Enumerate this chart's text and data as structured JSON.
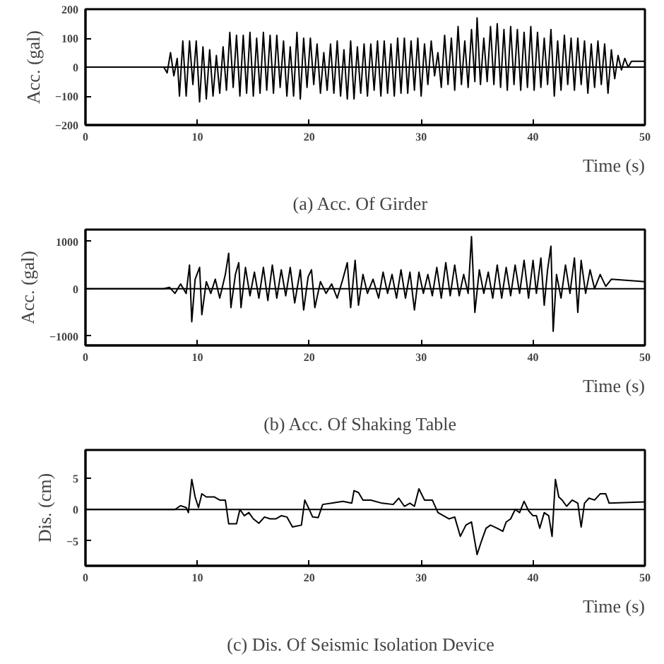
{
  "chart_data": [
    {
      "type": "line",
      "title": "(a)   Acc. Of Girder",
      "xlabel": "Time (s)",
      "ylabel": "Acc. (gal)",
      "xlim": [
        0,
        50
      ],
      "xticks": [
        0,
        10,
        20,
        30,
        40,
        50
      ],
      "ylim": [
        -200,
        200
      ],
      "yticks": [
        -200,
        -100,
        0,
        100,
        200
      ],
      "grid": false,
      "ref_lines": [
        {
          "axis": "y",
          "value": 0,
          "color": "#000000"
        }
      ],
      "series": [
        {
          "color": "#000000",
          "x": [
            0,
            7,
            7.3,
            7.6,
            7.9,
            8.2,
            8.4,
            8.7,
            9.0,
            9.3,
            9.6,
            9.9,
            10.2,
            10.5,
            10.8,
            11.1,
            11.4,
            11.7,
            12.0,
            12.3,
            12.6,
            12.9,
            13.2,
            13.5,
            13.8,
            14.1,
            14.4,
            14.7,
            15.0,
            15.3,
            15.6,
            15.9,
            16.2,
            16.5,
            16.8,
            17.1,
            17.4,
            17.7,
            18.0,
            18.3,
            18.6,
            18.9,
            19.2,
            19.5,
            19.8,
            20.1,
            20.4,
            20.7,
            21.0,
            21.3,
            21.6,
            21.9,
            22.2,
            22.5,
            22.8,
            23.1,
            23.4,
            23.7,
            24.0,
            24.3,
            24.6,
            24.9,
            25.2,
            25.5,
            25.8,
            26.1,
            26.4,
            26.7,
            27.0,
            27.3,
            27.6,
            27.9,
            28.2,
            28.5,
            28.8,
            29.1,
            29.4,
            29.7,
            30.0,
            30.3,
            30.6,
            30.9,
            31.2,
            31.5,
            31.8,
            32.1,
            32.4,
            32.7,
            33.0,
            33.3,
            33.6,
            33.9,
            34.2,
            34.5,
            34.8,
            35.0,
            35.3,
            35.6,
            35.9,
            36.2,
            36.5,
            36.8,
            37.1,
            37.4,
            37.7,
            38.0,
            38.3,
            38.6,
            38.9,
            39.2,
            39.5,
            39.8,
            40.1,
            40.4,
            40.7,
            41.0,
            41.3,
            41.6,
            41.9,
            42.2,
            42.5,
            42.8,
            43.1,
            43.4,
            43.7,
            44.0,
            44.3,
            44.6,
            44.9,
            45.2,
            45.5,
            45.8,
            46.1,
            46.4,
            46.7,
            47.0,
            47.3,
            47.6,
            47.9,
            48.2,
            48.5,
            48.8,
            50
          ],
          "values": [
            0,
            0,
            -20,
            50,
            -30,
            30,
            -100,
            90,
            -100,
            90,
            -60,
            90,
            -120,
            70,
            -110,
            60,
            -100,
            40,
            -90,
            70,
            -80,
            120,
            -70,
            110,
            -100,
            110,
            -90,
            120,
            -100,
            100,
            -90,
            120,
            -80,
            110,
            -90,
            110,
            -70,
            90,
            -100,
            70,
            -100,
            120,
            -110,
            100,
            -70,
            100,
            -60,
            80,
            -90,
            50,
            -80,
            80,
            -90,
            90,
            -100,
            60,
            -110,
            90,
            -110,
            70,
            -90,
            80,
            -100,
            80,
            -80,
            90,
            -100,
            90,
            -90,
            80,
            -100,
            100,
            -90,
            100,
            -90,
            90,
            -80,
            100,
            -100,
            80,
            -60,
            90,
            -30,
            50,
            -70,
            110,
            -60,
            100,
            -80,
            140,
            -60,
            90,
            -70,
            130,
            -50,
            170,
            -60,
            100,
            -50,
            140,
            -60,
            150,
            -70,
            130,
            -80,
            140,
            -60,
            130,
            -80,
            120,
            -70,
            140,
            -80,
            120,
            -70,
            100,
            -60,
            130,
            -100,
            90,
            -80,
            110,
            -60,
            100,
            -80,
            100,
            -60,
            90,
            -90,
            80,
            -70,
            90,
            -60,
            80,
            -90,
            60,
            -40,
            40,
            -10,
            30,
            0,
            20,
            20
          ]
        }
      ]
    },
    {
      "type": "line",
      "title": "(b)   Acc. Of Shaking Table",
      "xlabel": "Time (s)",
      "ylabel": "Acc. (gal)",
      "xlim": [
        0,
        50
      ],
      "xticks": [
        0,
        10,
        20,
        30,
        40,
        50
      ],
      "ylim": [
        -1200,
        1250
      ],
      "yticks": [
        -1000,
        0,
        1000
      ],
      "grid": false,
      "ref_lines": [
        {
          "axis": "y",
          "value": 0,
          "color": "#000000"
        }
      ],
      "series": [
        {
          "color": "#000000",
          "x": [
            0,
            7,
            7.5,
            8,
            8.5,
            9.0,
            9.3,
            9.5,
            9.8,
            10.2,
            10.4,
            10.8,
            11.2,
            11.6,
            12,
            12.5,
            12.8,
            13,
            13.4,
            13.7,
            13.9,
            14.3,
            14.7,
            15.1,
            15.5,
            15.9,
            16.3,
            16.7,
            17.1,
            17.5,
            17.9,
            18.3,
            18.7,
            19.2,
            19.5,
            19.9,
            20.2,
            20.5,
            21,
            21.5,
            22,
            22.5,
            23,
            23.4,
            23.7,
            24.1,
            24.4,
            24.8,
            25.2,
            25.7,
            26.2,
            26.6,
            27,
            27.4,
            27.8,
            28.2,
            28.6,
            29,
            29.4,
            29.8,
            30.2,
            30.6,
            31,
            31.4,
            31.8,
            32.2,
            32.6,
            33,
            33.4,
            33.8,
            34.2,
            34.5,
            34.8,
            35.2,
            35.6,
            36,
            36.4,
            36.8,
            37.2,
            37.6,
            38,
            38.4,
            38.8,
            39.2,
            39.6,
            40,
            40.3,
            40.7,
            41,
            41.3,
            41.6,
            41.8,
            42.1,
            42.5,
            42.9,
            43.3,
            43.7,
            44.0,
            44.3,
            44.7,
            45.1,
            45.5,
            46,
            46.5,
            47,
            50
          ],
          "values": [
            0,
            0,
            30,
            -100,
            100,
            -100,
            500,
            -700,
            200,
            450,
            -550,
            150,
            -100,
            200,
            -200,
            300,
            750,
            -400,
            300,
            550,
            -400,
            450,
            -150,
            350,
            -200,
            450,
            -250,
            500,
            -200,
            400,
            -150,
            450,
            -300,
            400,
            -450,
            250,
            400,
            -400,
            150,
            -100,
            100,
            -200,
            200,
            550,
            -400,
            600,
            -350,
            300,
            -100,
            200,
            -200,
            350,
            -100,
            300,
            -200,
            400,
            -200,
            350,
            -450,
            350,
            -100,
            300,
            -150,
            450,
            -200,
            550,
            -150,
            500,
            -150,
            300,
            -100,
            1100,
            -500,
            400,
            -100,
            350,
            -200,
            500,
            -200,
            450,
            -150,
            500,
            -100,
            600,
            -200,
            600,
            -100,
            650,
            -350,
            400,
            900,
            -900,
            300,
            -200,
            500,
            -100,
            650,
            -500,
            600,
            -100,
            400,
            0,
            300,
            50,
            200,
            150
          ]
        }
      ]
    },
    {
      "type": "line",
      "title": "(c)   Dis. Of Seismic Isolation Device",
      "xlabel": "Time (s)",
      "ylabel": "Dis. (cm)",
      "xlim": [
        0,
        50
      ],
      "xticks": [
        0,
        10,
        20,
        30,
        40,
        50
      ],
      "ylim": [
        -9,
        9.5
      ],
      "yticks": [
        -5,
        0,
        5
      ],
      "grid": false,
      "ref_lines": [
        {
          "axis": "y",
          "value": 0,
          "color": "#000000"
        }
      ],
      "series": [
        {
          "color": "#000000",
          "x": [
            0,
            8,
            8.5,
            9,
            9.2,
            9.5,
            9.8,
            10.1,
            10.4,
            10.8,
            11.5,
            12,
            12.5,
            12.8,
            13.5,
            13.8,
            14.2,
            14.6,
            15,
            15.5,
            16,
            16.5,
            17,
            17.5,
            18,
            18.5,
            19.3,
            19.6,
            20,
            20.3,
            20.8,
            21.2,
            22,
            23,
            23.8,
            24,
            24.4,
            24.8,
            25.5,
            26.5,
            27.5,
            28,
            28.5,
            29,
            29.4,
            29.8,
            30.3,
            31,
            31.5,
            32,
            32.5,
            33,
            33.5,
            34,
            34.5,
            35,
            35.4,
            35.8,
            36.2,
            36.8,
            37.3,
            37.6,
            38,
            38.4,
            38.8,
            39.2,
            39.6,
            40,
            40.3,
            40.6,
            41,
            41.4,
            41.7,
            42,
            42.3,
            42.6,
            43,
            43.5,
            44,
            44.3,
            44.6,
            45,
            45.5,
            46,
            46.5,
            46.8,
            50
          ],
          "values": [
            0,
            0,
            0.6,
            0.3,
            -0.5,
            4.8,
            2,
            0.3,
            2.5,
            2,
            2,
            1.5,
            1.5,
            -2.3,
            -2.3,
            0,
            -1,
            -0.5,
            -1.5,
            -2.2,
            -1.2,
            -1.5,
            -1.5,
            -1,
            -1.2,
            -2.8,
            -2.5,
            1.5,
            0,
            -1.2,
            -1.3,
            0.8,
            1,
            1.3,
            1,
            3,
            2.7,
            1.5,
            1.5,
            1,
            0.8,
            1.8,
            0.5,
            1,
            0.5,
            3.3,
            1.5,
            1.5,
            -0.5,
            -1,
            -1.5,
            -1.2,
            -4.3,
            -2.5,
            -2,
            -7.2,
            -5,
            -3,
            -2.5,
            -3,
            -3.5,
            -2,
            -1.5,
            0,
            -0.5,
            1.3,
            -0.2,
            -1,
            -1,
            -3,
            -0.5,
            -1,
            -4.3,
            4.8,
            2,
            1.5,
            0.5,
            1.5,
            1,
            -2.8,
            1,
            1.8,
            1.5,
            2.5,
            2.5,
            1,
            1.2
          ]
        }
      ]
    }
  ]
}
